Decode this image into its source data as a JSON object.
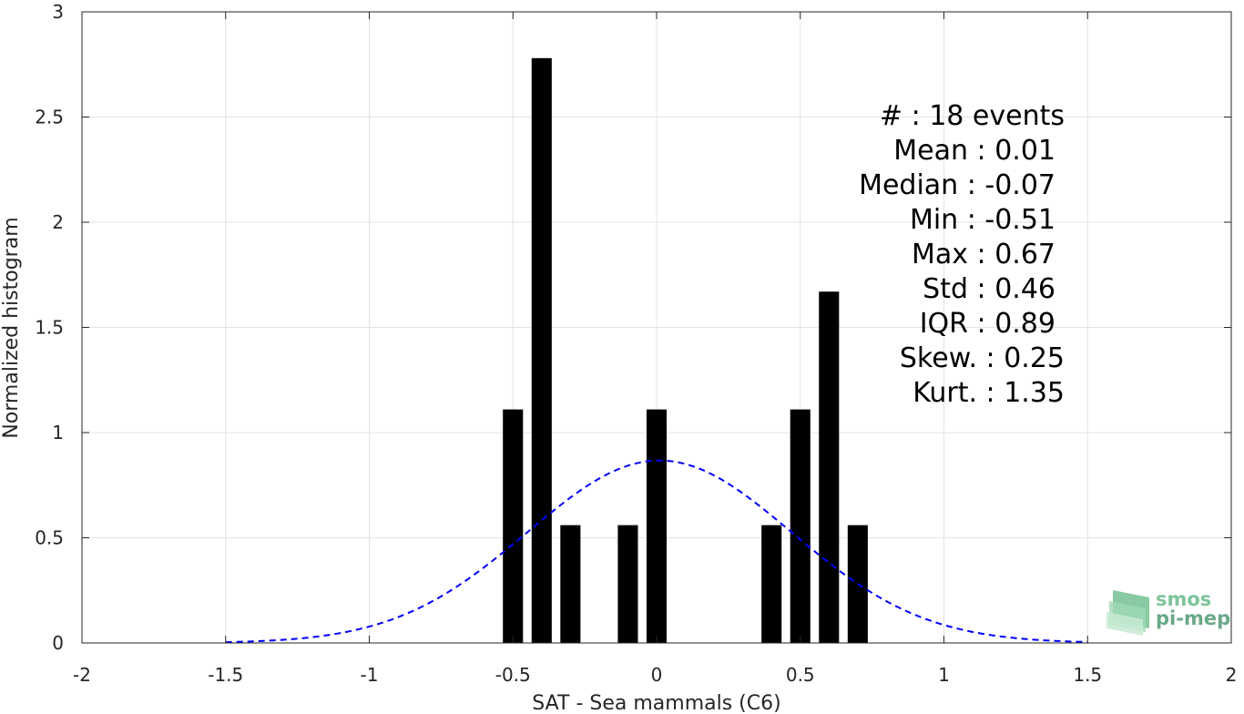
{
  "chart_data": {
    "type": "bar",
    "xlabel": "SAT - Sea mammals (C6)",
    "ylabel": "Normalized histogram",
    "xlim": [
      -2,
      2
    ],
    "ylim": [
      0,
      3
    ],
    "x_ticks": [
      -2,
      -1.5,
      -1,
      -0.5,
      0,
      0.5,
      1,
      1.5,
      2
    ],
    "x_tick_labels": [
      "-2",
      "-1.5",
      "-1",
      "-0.5",
      "0",
      "0.5",
      "1",
      "1.5",
      "2"
    ],
    "y_ticks": [
      0,
      0.5,
      1,
      1.5,
      2,
      2.5,
      3
    ],
    "y_tick_labels": [
      "0",
      "0.5",
      "1",
      "1.5",
      "2",
      "2.5",
      "3"
    ],
    "grid": true,
    "bar_width": 0.07,
    "bars": [
      {
        "x": -0.5,
        "value": 1.11
      },
      {
        "x": -0.4,
        "value": 2.78
      },
      {
        "x": -0.3,
        "value": 0.56
      },
      {
        "x": -0.1,
        "value": 0.56
      },
      {
        "x": 0.0,
        "value": 1.11
      },
      {
        "x": 0.4,
        "value": 0.56
      },
      {
        "x": 0.5,
        "value": 1.11
      },
      {
        "x": 0.6,
        "value": 1.67
      },
      {
        "x": 0.7,
        "value": 0.56
      }
    ],
    "fit_curve": {
      "type": "normal",
      "mean": 0.01,
      "std": 0.46,
      "x_range": [
        -1.5,
        1.5
      ],
      "color": "#0000ff",
      "style": "dashed"
    },
    "bar_color": "#000000",
    "stats_lines": [
      "#  : 18 events",
      "Mean : 0.01",
      "Median : -0.07",
      "Min : -0.51",
      "Max : 0.67",
      "Std : 0.46",
      "IQR : 0.89",
      "Skew. : 0.25",
      "Kurt. : 1.35"
    ]
  },
  "logo": {
    "line1": "smos",
    "line2": "pi-mep",
    "color_top": "#7cc49a",
    "color_bottom": "#6aa888"
  }
}
